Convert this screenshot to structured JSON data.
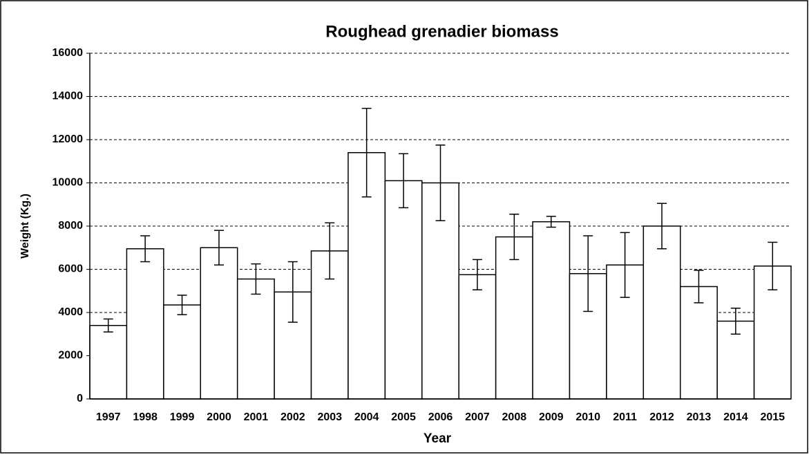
{
  "chart_data": {
    "type": "bar",
    "title": "Roughead grenadier biomass",
    "x_label": "Year",
    "y_label": "Weight (Kg.)",
    "categories": [
      "1997",
      "1998",
      "1999",
      "2000",
      "2001",
      "2002",
      "2003",
      "2004",
      "2005",
      "2006",
      "2007",
      "2008",
      "2009",
      "2010",
      "2011",
      "2012",
      "2013",
      "2014",
      "2015"
    ],
    "values": [
      3400,
      6950,
      4350,
      7000,
      5550,
      4950,
      6850,
      11400,
      10100,
      10000,
      5750,
      7500,
      8200,
      5800,
      6200,
      8000,
      5200,
      3600,
      6150
    ],
    "errors": [
      300,
      600,
      450,
      800,
      700,
      1400,
      1300,
      2050,
      1250,
      1750,
      700,
      1050,
      250,
      1750,
      1500,
      1050,
      750,
      600,
      1100
    ],
    "color": "#ffffff",
    "ylim": [
      0,
      16000
    ],
    "yticks": [
      0,
      2000,
      4000,
      6000,
      8000,
      10000,
      12000,
      14000,
      16000
    ],
    "grid": true
  }
}
